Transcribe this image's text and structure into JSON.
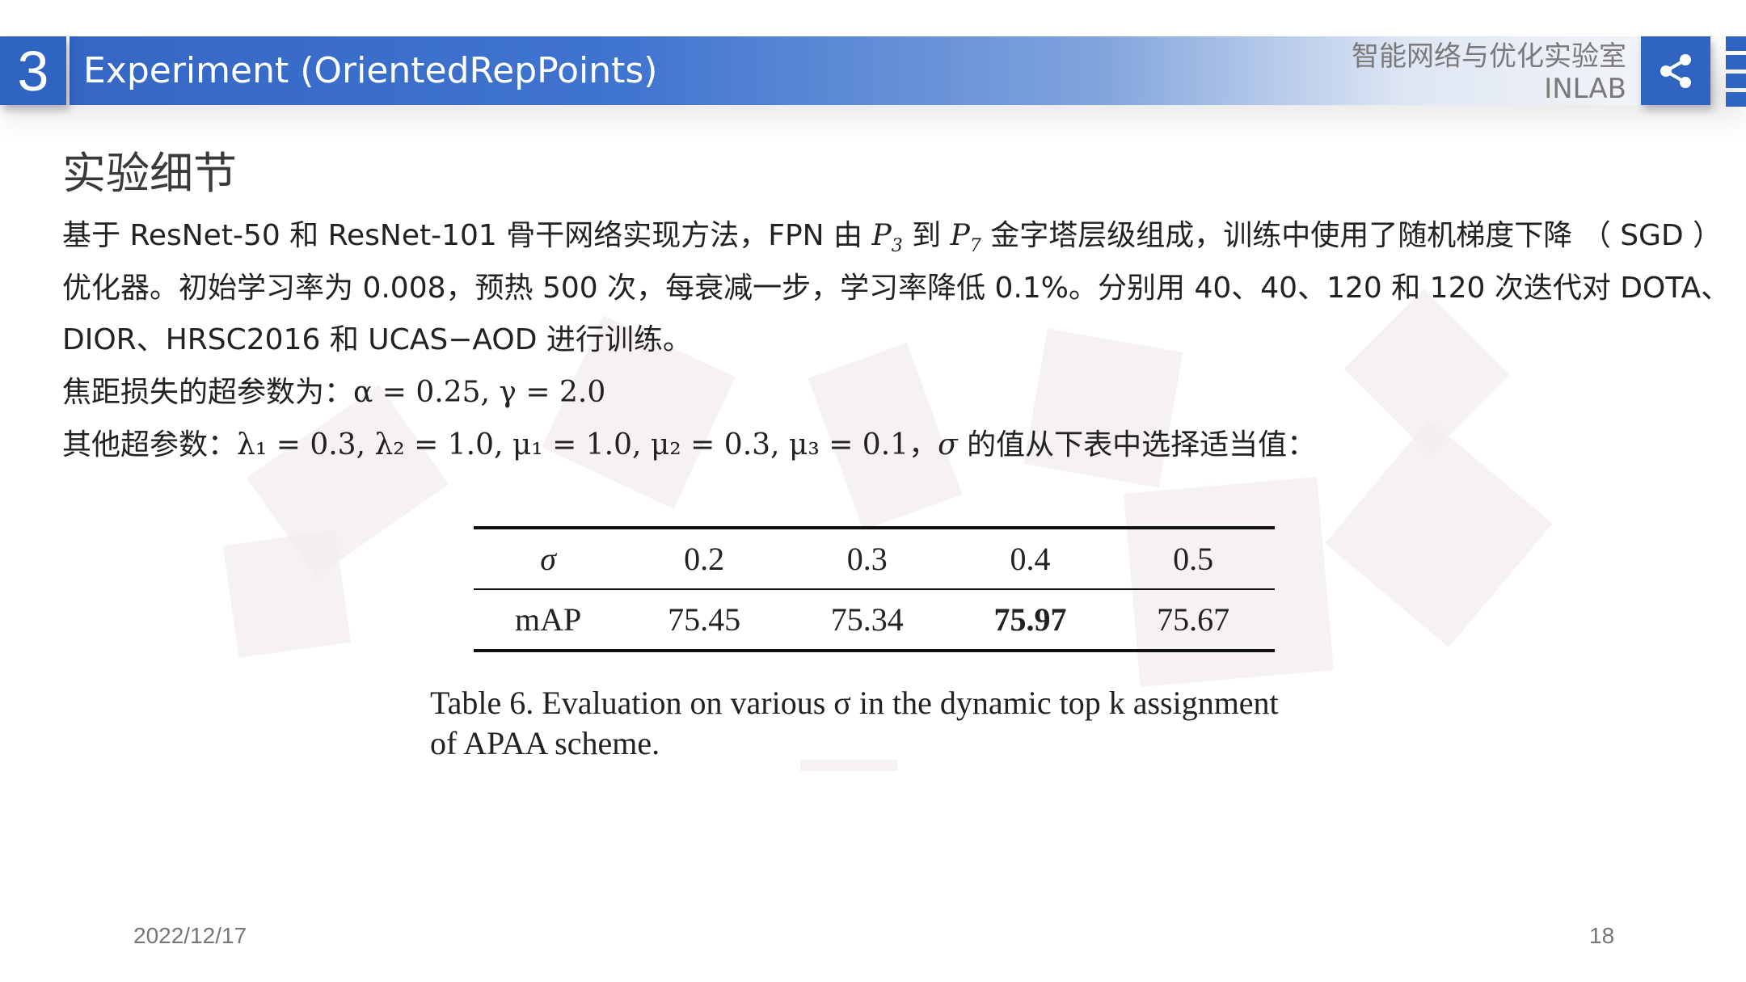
{
  "header": {
    "section_number": "3",
    "title": "Experiment (OrientedRepPoints)",
    "lab_name_cn": "智能网络与优化实验室",
    "lab_name_en": "INLAB",
    "share_icon": "share-icon",
    "accent_color": "#2f64c3"
  },
  "content": {
    "subtitle": "实验细节",
    "para1_line1_a": "基于 ResNet-50 和 ResNet-101 骨干网络实现方法，FPN 由 ",
    "para1_p3": "P",
    "para1_p3_sub": "3",
    "para1_line1_b": " 到 ",
    "para1_p7": "P",
    "para1_p7_sub": "7",
    "para1_line1_c": " 金字塔层级组成，训练中使用了随机梯度下降 （ SGD ）",
    "para1_line2": "优化器。初始学习率为 0.008，预热 500 次，每衰减一步，学习率降低 0.1%。分别用 40、40、120 和 120 次迭代对 DOTA、",
    "para1_line3": "DIOR、HRSC2016 和 UCAS−AOD 进行训练。",
    "para2_label": "焦距损失的超参数为：",
    "para2_math": "α = 0.25, γ = 2.0",
    "para3_label": "其他超参数：",
    "para3_math": "λ₁ = 0.3, λ₂ = 1.0, μ₁ = 1.0, μ₂ = 0.3, μ₃ = 0.1",
    "para3_sep": "，",
    "para3_sigma": "σ",
    "para3_tail": " 的值从下表中选择适当值："
  },
  "table": {
    "header": [
      "σ",
      "0.2",
      "0.3",
      "0.4",
      "0.5"
    ],
    "row": [
      "mAP",
      "75.45",
      "75.34",
      "75.97",
      "75.67"
    ],
    "bold_index": 3,
    "caption_line1": "Table 6. Evaluation on various σ in the dynamic top k assignment",
    "caption_line2": "of APAA scheme."
  },
  "footer": {
    "date": "2022/12/17",
    "page": "18"
  }
}
